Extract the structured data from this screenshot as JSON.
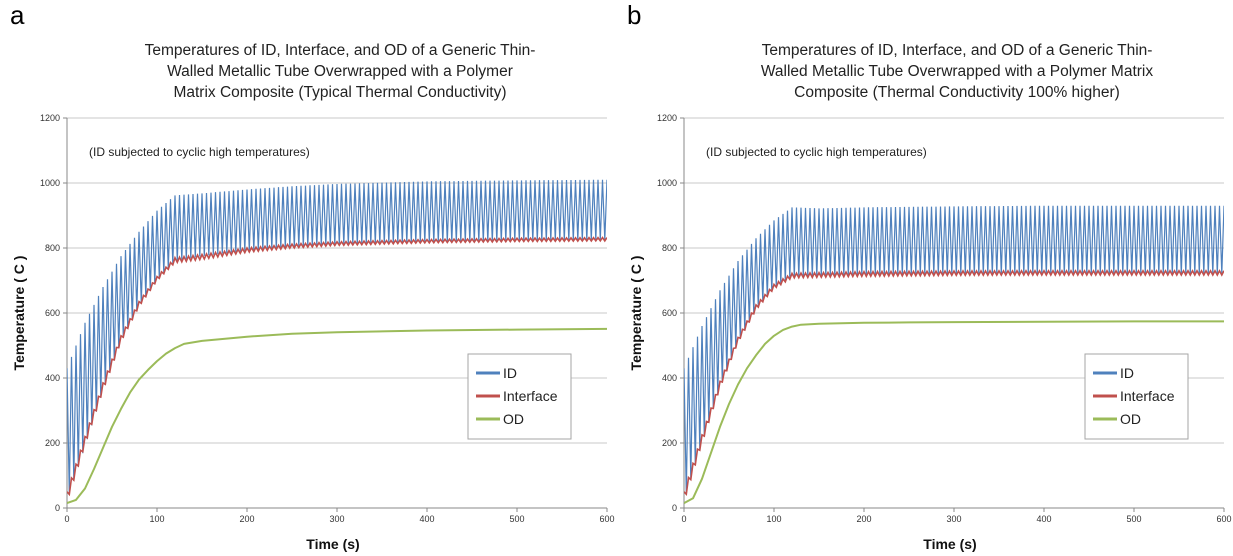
{
  "chart_data": [
    {
      "panel_label": "a",
      "type": "line",
      "title": "Temperatures of ID, Interface, and OD of a Generic Thin-Walled Metallic Tube Overwrapped with a Polymer Matrix Composite (Typical Thermal Conductivity)",
      "title_lines": [
        "Temperatures of ID, Interface, and OD of a Generic Thin-",
        "Walled Metallic Tube Overwrapped with a Polymer",
        "Matrix Composite (Typical Thermal Conductivity)"
      ],
      "annotation": "(ID subjected to cyclic high temperatures)",
      "xlabel": "Time (s)",
      "ylabel": "Temperature ( C )",
      "xlim": [
        0,
        600
      ],
      "ylim": [
        0,
        1200
      ],
      "xticks": [
        "0",
        "100",
        "200",
        "300",
        "400",
        "500",
        "600"
      ],
      "yticks": [
        "0",
        "200",
        "400",
        "600",
        "800",
        "1000",
        "1200"
      ],
      "grid": "horizontal",
      "legend": "right",
      "series": [
        {
          "name": "ID",
          "color": "#4f81bd",
          "upper": [
            [
              0,
              430
            ],
            [
              20,
              570
            ],
            [
              40,
              680
            ],
            [
              60,
              775
            ],
            [
              80,
              850
            ],
            [
              100,
              915
            ],
            [
              120,
              962
            ],
            [
              150,
              968
            ],
            [
              200,
              980
            ],
            [
              250,
              990
            ],
            [
              300,
              997
            ],
            [
              400,
              1005
            ],
            [
              500,
              1008
            ],
            [
              600,
              1010
            ]
          ],
          "lower": [
            [
              0,
              20
            ],
            [
              20,
              190
            ],
            [
              40,
              360
            ],
            [
              60,
              510
            ],
            [
              80,
              620
            ],
            [
              100,
              700
            ],
            [
              120,
              760
            ],
            [
              150,
              775
            ],
            [
              200,
              792
            ],
            [
              250,
              803
            ],
            [
              300,
              810
            ],
            [
              400,
              818
            ],
            [
              500,
              822
            ],
            [
              600,
              825
            ]
          ]
        },
        {
          "name": "Interface",
          "color": "#c0504d",
          "upper": [
            [
              0,
              50
            ],
            [
              20,
              220
            ],
            [
              40,
              385
            ],
            [
              60,
              530
            ],
            [
              80,
              635
            ],
            [
              100,
              712
            ],
            [
              120,
              770
            ],
            [
              150,
              780
            ],
            [
              200,
              800
            ],
            [
              250,
              812
            ],
            [
              300,
              819
            ],
            [
              400,
              826
            ],
            [
              500,
              830
            ],
            [
              600,
              832
            ]
          ],
          "lower": [
            [
              0,
              20
            ],
            [
              20,
              195
            ],
            [
              40,
              362
            ],
            [
              60,
              512
            ],
            [
              80,
              620
            ],
            [
              100,
              700
            ],
            [
              120,
              755
            ],
            [
              150,
              765
            ],
            [
              200,
              787
            ],
            [
              250,
              800
            ],
            [
              300,
              808
            ],
            [
              400,
              816
            ],
            [
              500,
              820
            ],
            [
              600,
              822
            ]
          ]
        },
        {
          "name": "OD",
          "color": "#9bbb59",
          "values": [
            [
              0,
              15
            ],
            [
              10,
              25
            ],
            [
              20,
              60
            ],
            [
              30,
              120
            ],
            [
              40,
              185
            ],
            [
              50,
              250
            ],
            [
              60,
              305
            ],
            [
              70,
              355
            ],
            [
              80,
              395
            ],
            [
              90,
              425
            ],
            [
              100,
              452
            ],
            [
              110,
              475
            ],
            [
              120,
              492
            ],
            [
              130,
              505
            ],
            [
              150,
              514
            ],
            [
              200,
              527
            ],
            [
              250,
              536
            ],
            [
              300,
              541
            ],
            [
              400,
              546
            ],
            [
              500,
              549
            ],
            [
              600,
              551
            ]
          ]
        }
      ]
    },
    {
      "panel_label": "b",
      "type": "line",
      "title": "Temperatures of ID, Interface, and OD of a Generic Thin-Walled Metallic Tube Overwrapped with a Polymer Matrix Composite (Thermal Conductivity 100% higher)",
      "title_lines": [
        "Temperatures of ID, Interface, and OD of a Generic Thin-",
        "Walled Metallic Tube Overwrapped with a Polymer Matrix",
        "Composite (Thermal Conductivity 100% higher)"
      ],
      "annotation": "(ID subjected to cyclic high temperatures)",
      "xlabel": "Time (s)",
      "ylabel": "Temperature ( C )",
      "xlim": [
        0,
        600
      ],
      "ylim": [
        0,
        1200
      ],
      "xticks": [
        "0",
        "100",
        "200",
        "300",
        "400",
        "500",
        "600"
      ],
      "yticks": [
        "0",
        "200",
        "400",
        "600",
        "800",
        "1000",
        "1200"
      ],
      "grid": "horizontal",
      "legend": "right",
      "series": [
        {
          "name": "ID",
          "color": "#4f81bd",
          "upper": [
            [
              0,
              430
            ],
            [
              20,
              560
            ],
            [
              40,
              670
            ],
            [
              60,
              760
            ],
            [
              80,
              830
            ],
            [
              100,
              885
            ],
            [
              120,
              925
            ],
            [
              150,
              922
            ],
            [
              200,
              925
            ],
            [
              300,
              928
            ],
            [
              400,
              930
            ],
            [
              500,
              930
            ],
            [
              600,
              930
            ]
          ],
          "lower": [
            [
              0,
              20
            ],
            [
              20,
              200
            ],
            [
              40,
              370
            ],
            [
              60,
              510
            ],
            [
              80,
              610
            ],
            [
              100,
              675
            ],
            [
              120,
              712
            ],
            [
              150,
              712
            ],
            [
              200,
              716
            ],
            [
              300,
              719
            ],
            [
              400,
              720
            ],
            [
              500,
              720
            ],
            [
              600,
              720
            ]
          ]
        },
        {
          "name": "Interface",
          "color": "#c0504d",
          "upper": [
            [
              0,
              50
            ],
            [
              20,
              225
            ],
            [
              40,
              390
            ],
            [
              60,
              525
            ],
            [
              80,
              625
            ],
            [
              100,
              688
            ],
            [
              120,
              722
            ],
            [
              150,
              724
            ],
            [
              200,
              727
            ],
            [
              300,
              729
            ],
            [
              400,
              730
            ],
            [
              500,
              730
            ],
            [
              600,
              730
            ]
          ],
          "lower": [
            [
              0,
              20
            ],
            [
              20,
              200
            ],
            [
              40,
              370
            ],
            [
              60,
              510
            ],
            [
              80,
              610
            ],
            [
              100,
              675
            ],
            [
              120,
              708
            ],
            [
              150,
              710
            ],
            [
              200,
              713
            ],
            [
              300,
              716
            ],
            [
              400,
              717
            ],
            [
              500,
              717
            ],
            [
              600,
              717
            ]
          ]
        },
        {
          "name": "OD",
          "color": "#9bbb59",
          "values": [
            [
              0,
              15
            ],
            [
              10,
              30
            ],
            [
              20,
              90
            ],
            [
              30,
              170
            ],
            [
              40,
              250
            ],
            [
              50,
              320
            ],
            [
              60,
              380
            ],
            [
              70,
              430
            ],
            [
              80,
              470
            ],
            [
              90,
              505
            ],
            [
              100,
              530
            ],
            [
              110,
              548
            ],
            [
              120,
              558
            ],
            [
              130,
              564
            ],
            [
              150,
              567
            ],
            [
              200,
              570
            ],
            [
              250,
              571
            ],
            [
              300,
              572
            ],
            [
              400,
              573
            ],
            [
              500,
              574
            ],
            [
              600,
              574
            ]
          ]
        }
      ]
    }
  ]
}
